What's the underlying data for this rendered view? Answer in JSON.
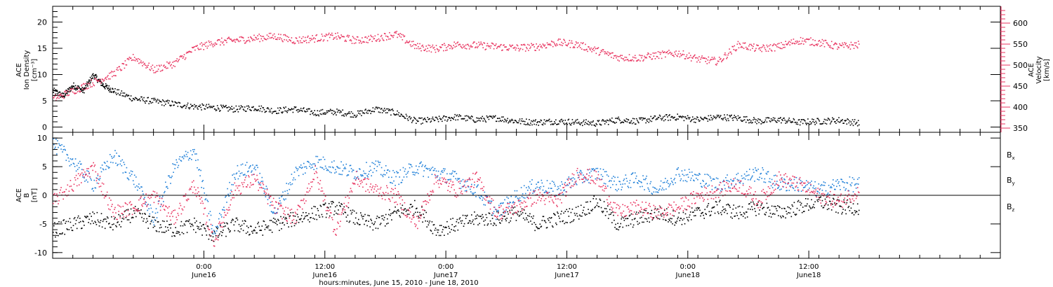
{
  "colors": {
    "black": "#000000",
    "pink": "#e8335f",
    "blue": "#1e7fd8"
  },
  "chart_data": [
    {
      "type": "scatter",
      "panel": "top",
      "left_axis": {
        "label_lines": [
          "ACE",
          "Ion Density",
          "[cm⁻³]"
        ],
        "ylim": [
          -1,
          23
        ],
        "ticks": [
          "0",
          "5",
          "10",
          "15",
          "20"
        ]
      },
      "right_axis": {
        "label_lines": [
          "ACE",
          "Velocity",
          "[km/s]"
        ],
        "ylim": [
          340,
          640
        ],
        "ticks": [
          "350",
          "400",
          "450",
          "500",
          "550",
          "600"
        ],
        "color": "#e8335f"
      },
      "series": [
        {
          "axis": "left",
          "color": "#000000",
          "x": [
            0,
            1,
            2,
            3,
            4,
            5,
            6,
            8,
            10,
            12,
            14,
            16,
            18,
            20,
            22,
            24,
            26,
            28,
            30,
            32,
            34,
            36,
            38,
            40,
            42,
            44,
            46,
            48,
            50,
            52,
            54,
            56,
            58,
            60,
            62,
            64,
            66,
            68,
            70,
            72,
            74,
            76,
            78,
            80
          ],
          "y": [
            7,
            6,
            8,
            7,
            10,
            8,
            7,
            5.5,
            5,
            4.5,
            4,
            3.8,
            3.5,
            3.8,
            3.2,
            3.5,
            2.8,
            3,
            2.5,
            3.5,
            2.8,
            1.2,
            1.5,
            2,
            1.5,
            1.8,
            1.2,
            1,
            1.2,
            1,
            0.8,
            1.5,
            1.2,
            1.8,
            2,
            1.5,
            2,
            1.8,
            1.2,
            1.5,
            1,
            1.2,
            1.4,
            0.8
          ]
        },
        {
          "axis": "right",
          "color": "#e8335f",
          "x": [
            0,
            2,
            4,
            6,
            8,
            10,
            12,
            14,
            16,
            18,
            20,
            22,
            24,
            26,
            28,
            30,
            32,
            34,
            36,
            38,
            40,
            42,
            44,
            46,
            48,
            50,
            52,
            54,
            56,
            58,
            60,
            62,
            64,
            66,
            68,
            70,
            72,
            74,
            76,
            78,
            80
          ],
          "y": [
            420,
            440,
            460,
            480,
            520,
            490,
            505,
            540,
            555,
            560,
            565,
            570,
            560,
            565,
            570,
            560,
            565,
            575,
            545,
            540,
            550,
            548,
            545,
            542,
            545,
            555,
            550,
            535,
            520,
            518,
            525,
            530,
            515,
            510,
            550,
            540,
            545,
            560,
            555,
            545,
            550
          ]
        }
      ]
    },
    {
      "type": "scatter",
      "panel": "bottom",
      "left_axis": {
        "label_lines": [
          "ACE",
          "B",
          "[nT]"
        ],
        "ylim": [
          -11,
          11
        ],
        "ticks": [
          "-10",
          "-5",
          "0",
          "5",
          "10"
        ]
      },
      "series": [
        {
          "name": "Bx",
          "color": "#000000",
          "x": [
            0,
            2,
            4,
            6,
            8,
            10,
            12,
            14,
            16,
            18,
            20,
            22,
            24,
            26,
            28,
            30,
            32,
            34,
            36,
            38,
            40,
            42,
            44,
            46,
            48,
            50,
            52,
            54,
            56,
            58,
            60,
            62,
            64,
            66,
            68,
            70,
            72,
            74,
            76,
            78,
            80
          ],
          "y": [
            -6,
            -5,
            -4,
            -5,
            -3,
            -5,
            -6,
            -5,
            -7,
            -5,
            -6,
            -5,
            -4,
            -3,
            -2,
            -4,
            -5,
            -3,
            -2,
            -6,
            -5,
            -4,
            -4,
            -3,
            -5,
            -4,
            -3,
            -1,
            -5,
            -4,
            -3,
            -4,
            -3,
            -2,
            -3,
            -2,
            -3,
            -2,
            -1,
            -2,
            -2
          ]
        },
        {
          "name": "By",
          "color": "#1e7fd8",
          "x": [
            0,
            2,
            4,
            6,
            8,
            10,
            12,
            14,
            16,
            18,
            20,
            22,
            24,
            26,
            28,
            30,
            32,
            34,
            36,
            38,
            40,
            42,
            44,
            46,
            48,
            50,
            52,
            54,
            56,
            58,
            60,
            62,
            64,
            66,
            68,
            70,
            72,
            74,
            76,
            78,
            80
          ],
          "y": [
            9,
            6,
            2,
            7,
            3,
            -4,
            5,
            8,
            -7,
            4,
            5,
            -3,
            4,
            6,
            5,
            4,
            5,
            3,
            5,
            4,
            3,
            1,
            -3,
            0,
            2,
            1,
            3,
            4,
            2,
            3,
            1,
            4,
            3,
            2,
            3,
            4,
            2,
            2,
            1,
            2,
            2
          ]
        },
        {
          "name": "Bz",
          "color": "#e8335f",
          "x": [
            0,
            2,
            4,
            6,
            8,
            10,
            12,
            14,
            16,
            18,
            20,
            22,
            24,
            26,
            28,
            30,
            32,
            34,
            36,
            38,
            40,
            42,
            44,
            46,
            48,
            50,
            52,
            54,
            56,
            58,
            60,
            62,
            64,
            66,
            68,
            70,
            72,
            74,
            76,
            78,
            80
          ],
          "y": [
            -1,
            2,
            5,
            -3,
            -2,
            0,
            -4,
            2,
            -8,
            1,
            3,
            -2,
            -4,
            4,
            -6,
            3,
            1,
            0,
            -5,
            3,
            1,
            3,
            -3,
            -2,
            0,
            -1,
            4,
            3,
            -3,
            -2,
            -3,
            -2,
            0,
            1,
            2,
            -1,
            3,
            2,
            0,
            -1,
            1
          ]
        }
      ],
      "legend": [
        {
          "base": "B",
          "sub": "x",
          "color": "#000000"
        },
        {
          "base": "B",
          "sub": "y",
          "color": "#1e7fd8"
        },
        {
          "base": "B",
          "sub": "z",
          "color": "#e8335f"
        }
      ]
    }
  ],
  "x_axis": {
    "xlim": [
      0,
      94
    ],
    "major_ticks": [
      {
        "hour": 15,
        "time": "0:00",
        "date": "June16"
      },
      {
        "hour": 27,
        "time": "12:00",
        "date": "June16"
      },
      {
        "hour": 39,
        "time": "0:00",
        "date": "June17"
      },
      {
        "hour": 51,
        "time": "12:00",
        "date": "June17"
      },
      {
        "hour": 63,
        "time": "0:00",
        "date": "June18"
      },
      {
        "hour": 75,
        "time": "12:00",
        "date": "June18"
      }
    ],
    "label": "hours:minutes, June 15, 2010 - June 18, 2010"
  }
}
